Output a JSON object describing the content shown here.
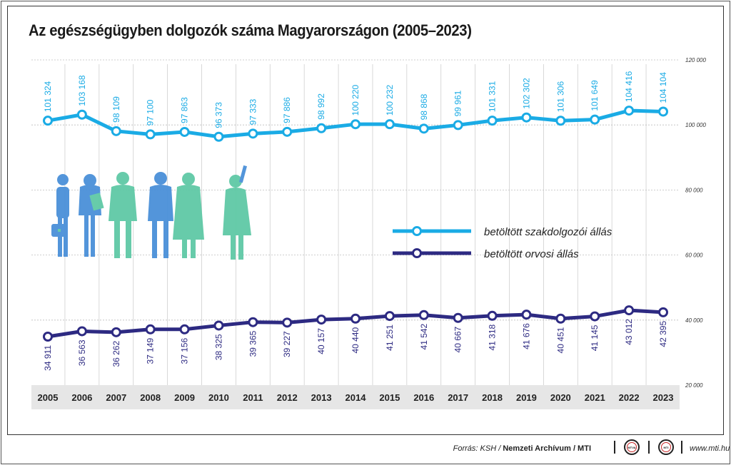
{
  "title": "Az egészségügyben dolgozók száma Magyarországon (2005–2023)",
  "colors": {
    "series1": "#1aabe5",
    "series2": "#2d2a82",
    "figure_green": "#5fc9a6",
    "figure_blue": "#4a90d9",
    "year_band": "#e6e6e6"
  },
  "chart_data": {
    "type": "line",
    "title": "Az egészségügyben dolgozók száma Magyarországon (2005–2023)",
    "x": [
      "2005",
      "2006",
      "2007",
      "2008",
      "2009",
      "2010",
      "2011",
      "2012",
      "2013",
      "2014",
      "2015",
      "2016",
      "2017",
      "2018",
      "2019",
      "2020",
      "2021",
      "2022",
      "2023"
    ],
    "series": [
      {
        "name": "betöltött szakdolgozói állás",
        "color": "#1aabe5",
        "values": [
          101324,
          103168,
          98109,
          97100,
          97863,
          96373,
          97333,
          97886,
          98992,
          100220,
          100232,
          98868,
          99961,
          101331,
          102302,
          101306,
          101649,
          104416,
          104104
        ],
        "labels": [
          "101 324",
          "103 168",
          "98 109",
          "97 100",
          "97 863",
          "96 373",
          "97 333",
          "97 886",
          "98 992",
          "100 220",
          "100 232",
          "98 868",
          "99 961",
          "101 331",
          "102 302",
          "101 306",
          "101 649",
          "104 416",
          "104 104"
        ]
      },
      {
        "name": "betöltött orvosi állás",
        "color": "#2d2a82",
        "values": [
          34911,
          36563,
          36262,
          37149,
          37156,
          38325,
          39365,
          39227,
          40157,
          40440,
          41251,
          41542,
          40667,
          41318,
          41676,
          40451,
          41145,
          43012,
          42395
        ],
        "labels": [
          "34 911",
          "36 563",
          "36 262",
          "37 149",
          "37 156",
          "38 325",
          "39 365",
          "39 227",
          "40 157",
          "40 440",
          "41 251",
          "41 542",
          "40 667",
          "41 318",
          "41 676",
          "40 451",
          "41 145",
          "43 012",
          "42 395"
        ]
      }
    ],
    "ylim": [
      20000,
      120000
    ],
    "yticks": [
      20000,
      40000,
      60000,
      80000,
      100000,
      120000
    ],
    "ytick_labels": [
      "20 000",
      "40 000",
      "60 000",
      "80 000",
      "100 000",
      "120 000"
    ],
    "grid": true,
    "legend_position": "right-middle"
  },
  "legend": [
    "betöltött szakdolgozói állás",
    "betöltött orvosi állás"
  ],
  "footer": {
    "source_prefix": "Forrás: KSH / ",
    "source_bold": "Nemzeti Archívum / MTI",
    "logo1": "MTVA",
    "logo2": "MTI",
    "website": "www.mti.hu"
  }
}
